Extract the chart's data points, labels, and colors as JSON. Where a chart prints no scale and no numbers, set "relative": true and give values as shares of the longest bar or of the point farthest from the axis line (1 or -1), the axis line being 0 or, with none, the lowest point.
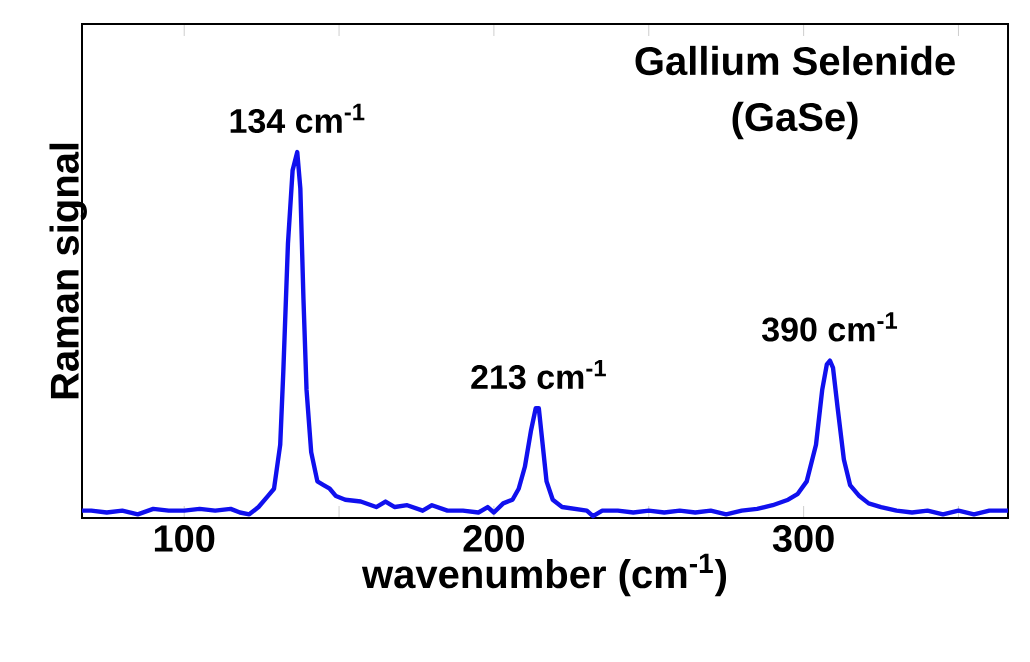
{
  "chart_data": {
    "type": "line",
    "title": "Gallium Selenide",
    "subtitle": "(GaSe)",
    "xlabel": "wavenumber (cm$^{-1}$)",
    "ylabel": "Raman signal",
    "relative": true,
    "xlim": [
      67,
      366
    ],
    "xticks": [
      100,
      {
        "value": 150,
        "label": null
      },
      200,
      {
        "value": 250,
        "label": null
      },
      300,
      {
        "value": 350,
        "label": null
      }
    ],
    "annotations": [
      {
        "text": "134 cm$^{-1}$",
        "x": 136.5,
        "y": 1.0
      },
      {
        "text": "213 cm$^{-1}$",
        "x": 214.5,
        "y": 0.3
      },
      {
        "text": "390 cm$^{-1}$",
        "x": 308.5,
        "y": 0.43
      }
    ],
    "series": [
      {
        "color": "#1010ee",
        "x": [
          67,
          70,
          75,
          80,
          85,
          90,
          95,
          100,
          105,
          110,
          115,
          118,
          121,
          124,
          127,
          129,
          131,
          132,
          133.5,
          135,
          136.5,
          137.5,
          138.5,
          139.5,
          141,
          143,
          145,
          147,
          149,
          152,
          157,
          162,
          165,
          168,
          172,
          177,
          180,
          185,
          190,
          195,
          198,
          200,
          203,
          206,
          208,
          210,
          212,
          213.5,
          214.5,
          215.5,
          217,
          219,
          222,
          226,
          230,
          232,
          235,
          240,
          245,
          250,
          255,
          260,
          265,
          270,
          275,
          280,
          285,
          290,
          295,
          298,
          301,
          304,
          306,
          307.5,
          308.5,
          309.5,
          311,
          313,
          315,
          318,
          321,
          325,
          330,
          335,
          340,
          345,
          350,
          355,
          360,
          366
        ],
        "values": [
          0.02,
          0.02,
          0.015,
          0.02,
          0.01,
          0.025,
          0.02,
          0.02,
          0.025,
          0.02,
          0.025,
          0.015,
          0.01,
          0.03,
          0.06,
          0.08,
          0.2,
          0.4,
          0.75,
          0.95,
          1.0,
          0.9,
          0.6,
          0.35,
          0.18,
          0.1,
          0.09,
          0.08,
          0.06,
          0.05,
          0.045,
          0.03,
          0.045,
          0.03,
          0.035,
          0.02,
          0.035,
          0.02,
          0.02,
          0.015,
          0.03,
          0.015,
          0.04,
          0.05,
          0.08,
          0.14,
          0.24,
          0.3,
          0.3,
          0.22,
          0.1,
          0.05,
          0.03,
          0.025,
          0.02,
          0.005,
          0.02,
          0.02,
          0.015,
          0.02,
          0.015,
          0.02,
          0.015,
          0.02,
          0.01,
          0.02,
          0.025,
          0.035,
          0.05,
          0.065,
          0.1,
          0.2,
          0.35,
          0.42,
          0.43,
          0.41,
          0.3,
          0.16,
          0.09,
          0.06,
          0.04,
          0.03,
          0.02,
          0.015,
          0.02,
          0.01,
          0.02,
          0.01,
          0.02,
          0.02
        ]
      }
    ]
  }
}
